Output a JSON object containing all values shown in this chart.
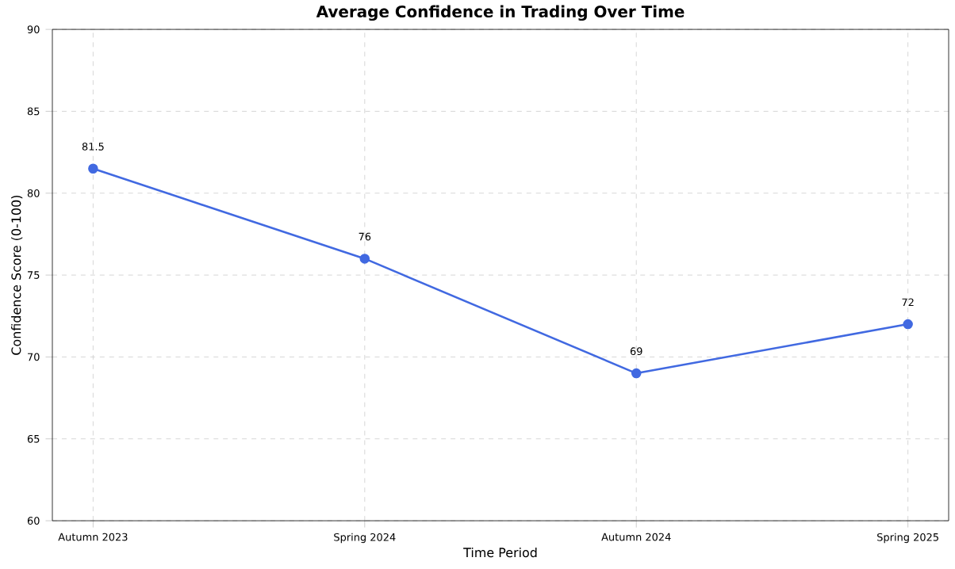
{
  "chart_data": {
    "type": "line",
    "title": "Average Confidence in Trading Over Time",
    "xlabel": "Time Period",
    "ylabel": "Confidence Score (0-100)",
    "categories": [
      "Autumn 2023",
      "Spring 2024",
      "Autumn 2024",
      "Spring 2025"
    ],
    "values": [
      81.5,
      76,
      69,
      72
    ],
    "color": "#4169e1",
    "marker": "circle",
    "line_style": "solid",
    "grid": true,
    "data_labels": true,
    "ylim": [
      60,
      90
    ],
    "yticks": [
      60,
      65,
      70,
      75,
      80,
      85,
      90
    ]
  }
}
